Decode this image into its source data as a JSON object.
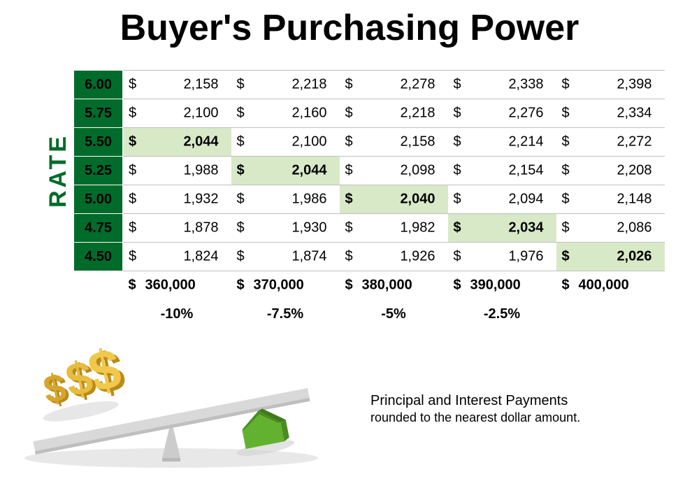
{
  "title": "Buyer's Purchasing Power",
  "rate_label": "RATE",
  "table": {
    "type": "table",
    "rate_header_bg": "#006b2b",
    "rate_header_fg": "#ffffff",
    "cell_border_color": "#bfbfbf",
    "highlight_bg": "#d8e9c8",
    "font_size_body": 20,
    "font_size_title": 52,
    "rates": [
      "6.00",
      "5.75",
      "5.50",
      "5.25",
      "5.00",
      "4.75",
      "4.50"
    ],
    "loan_amounts": [
      "360,000",
      "370,000",
      "380,000",
      "390,000",
      "400,000"
    ],
    "pct_changes": [
      "-10%",
      "-7.5%",
      "-5%",
      "-2.5%",
      ""
    ],
    "rows": [
      [
        {
          "v": "2,158",
          "hl": false
        },
        {
          "v": "2,218",
          "hl": false
        },
        {
          "v": "2,278",
          "hl": false
        },
        {
          "v": "2,338",
          "hl": false
        },
        {
          "v": "2,398",
          "hl": false
        }
      ],
      [
        {
          "v": "2,100",
          "hl": false
        },
        {
          "v": "2,160",
          "hl": false
        },
        {
          "v": "2,218",
          "hl": false
        },
        {
          "v": "2,276",
          "hl": false
        },
        {
          "v": "2,334",
          "hl": false
        }
      ],
      [
        {
          "v": "2,044",
          "hl": true
        },
        {
          "v": "2,100",
          "hl": false
        },
        {
          "v": "2,158",
          "hl": false
        },
        {
          "v": "2,214",
          "hl": false
        },
        {
          "v": "2,272",
          "hl": false
        }
      ],
      [
        {
          "v": "1,988",
          "hl": false
        },
        {
          "v": "2,044",
          "hl": true
        },
        {
          "v": "2,098",
          "hl": false
        },
        {
          "v": "2,154",
          "hl": false
        },
        {
          "v": "2,208",
          "hl": false
        }
      ],
      [
        {
          "v": "1,932",
          "hl": false
        },
        {
          "v": "1,986",
          "hl": false
        },
        {
          "v": "2,040",
          "hl": true
        },
        {
          "v": "2,094",
          "hl": false
        },
        {
          "v": "2,148",
          "hl": false
        }
      ],
      [
        {
          "v": "1,878",
          "hl": false
        },
        {
          "v": "1,930",
          "hl": false
        },
        {
          "v": "1,982",
          "hl": false
        },
        {
          "v": "2,034",
          "hl": true
        },
        {
          "v": "2,086",
          "hl": false
        }
      ],
      [
        {
          "v": "1,824",
          "hl": false
        },
        {
          "v": "1,874",
          "hl": false
        },
        {
          "v": "1,926",
          "hl": false
        },
        {
          "v": "1,976",
          "hl": false
        },
        {
          "v": "2,026",
          "hl": true
        }
      ]
    ]
  },
  "footnote_line1": "Principal and Interest Payments",
  "footnote_line2": "rounded to the nearest dollar amount.",
  "illustration": {
    "dollar_color": "#d6a62a",
    "dollar_highlight": "#f2c84b",
    "house_color": "#63b22f",
    "house_dark": "#4a8c22",
    "plank_color": "#d9d9d9",
    "pivot_color": "#cccccc",
    "shadow_color": "#d0d0d0"
  }
}
